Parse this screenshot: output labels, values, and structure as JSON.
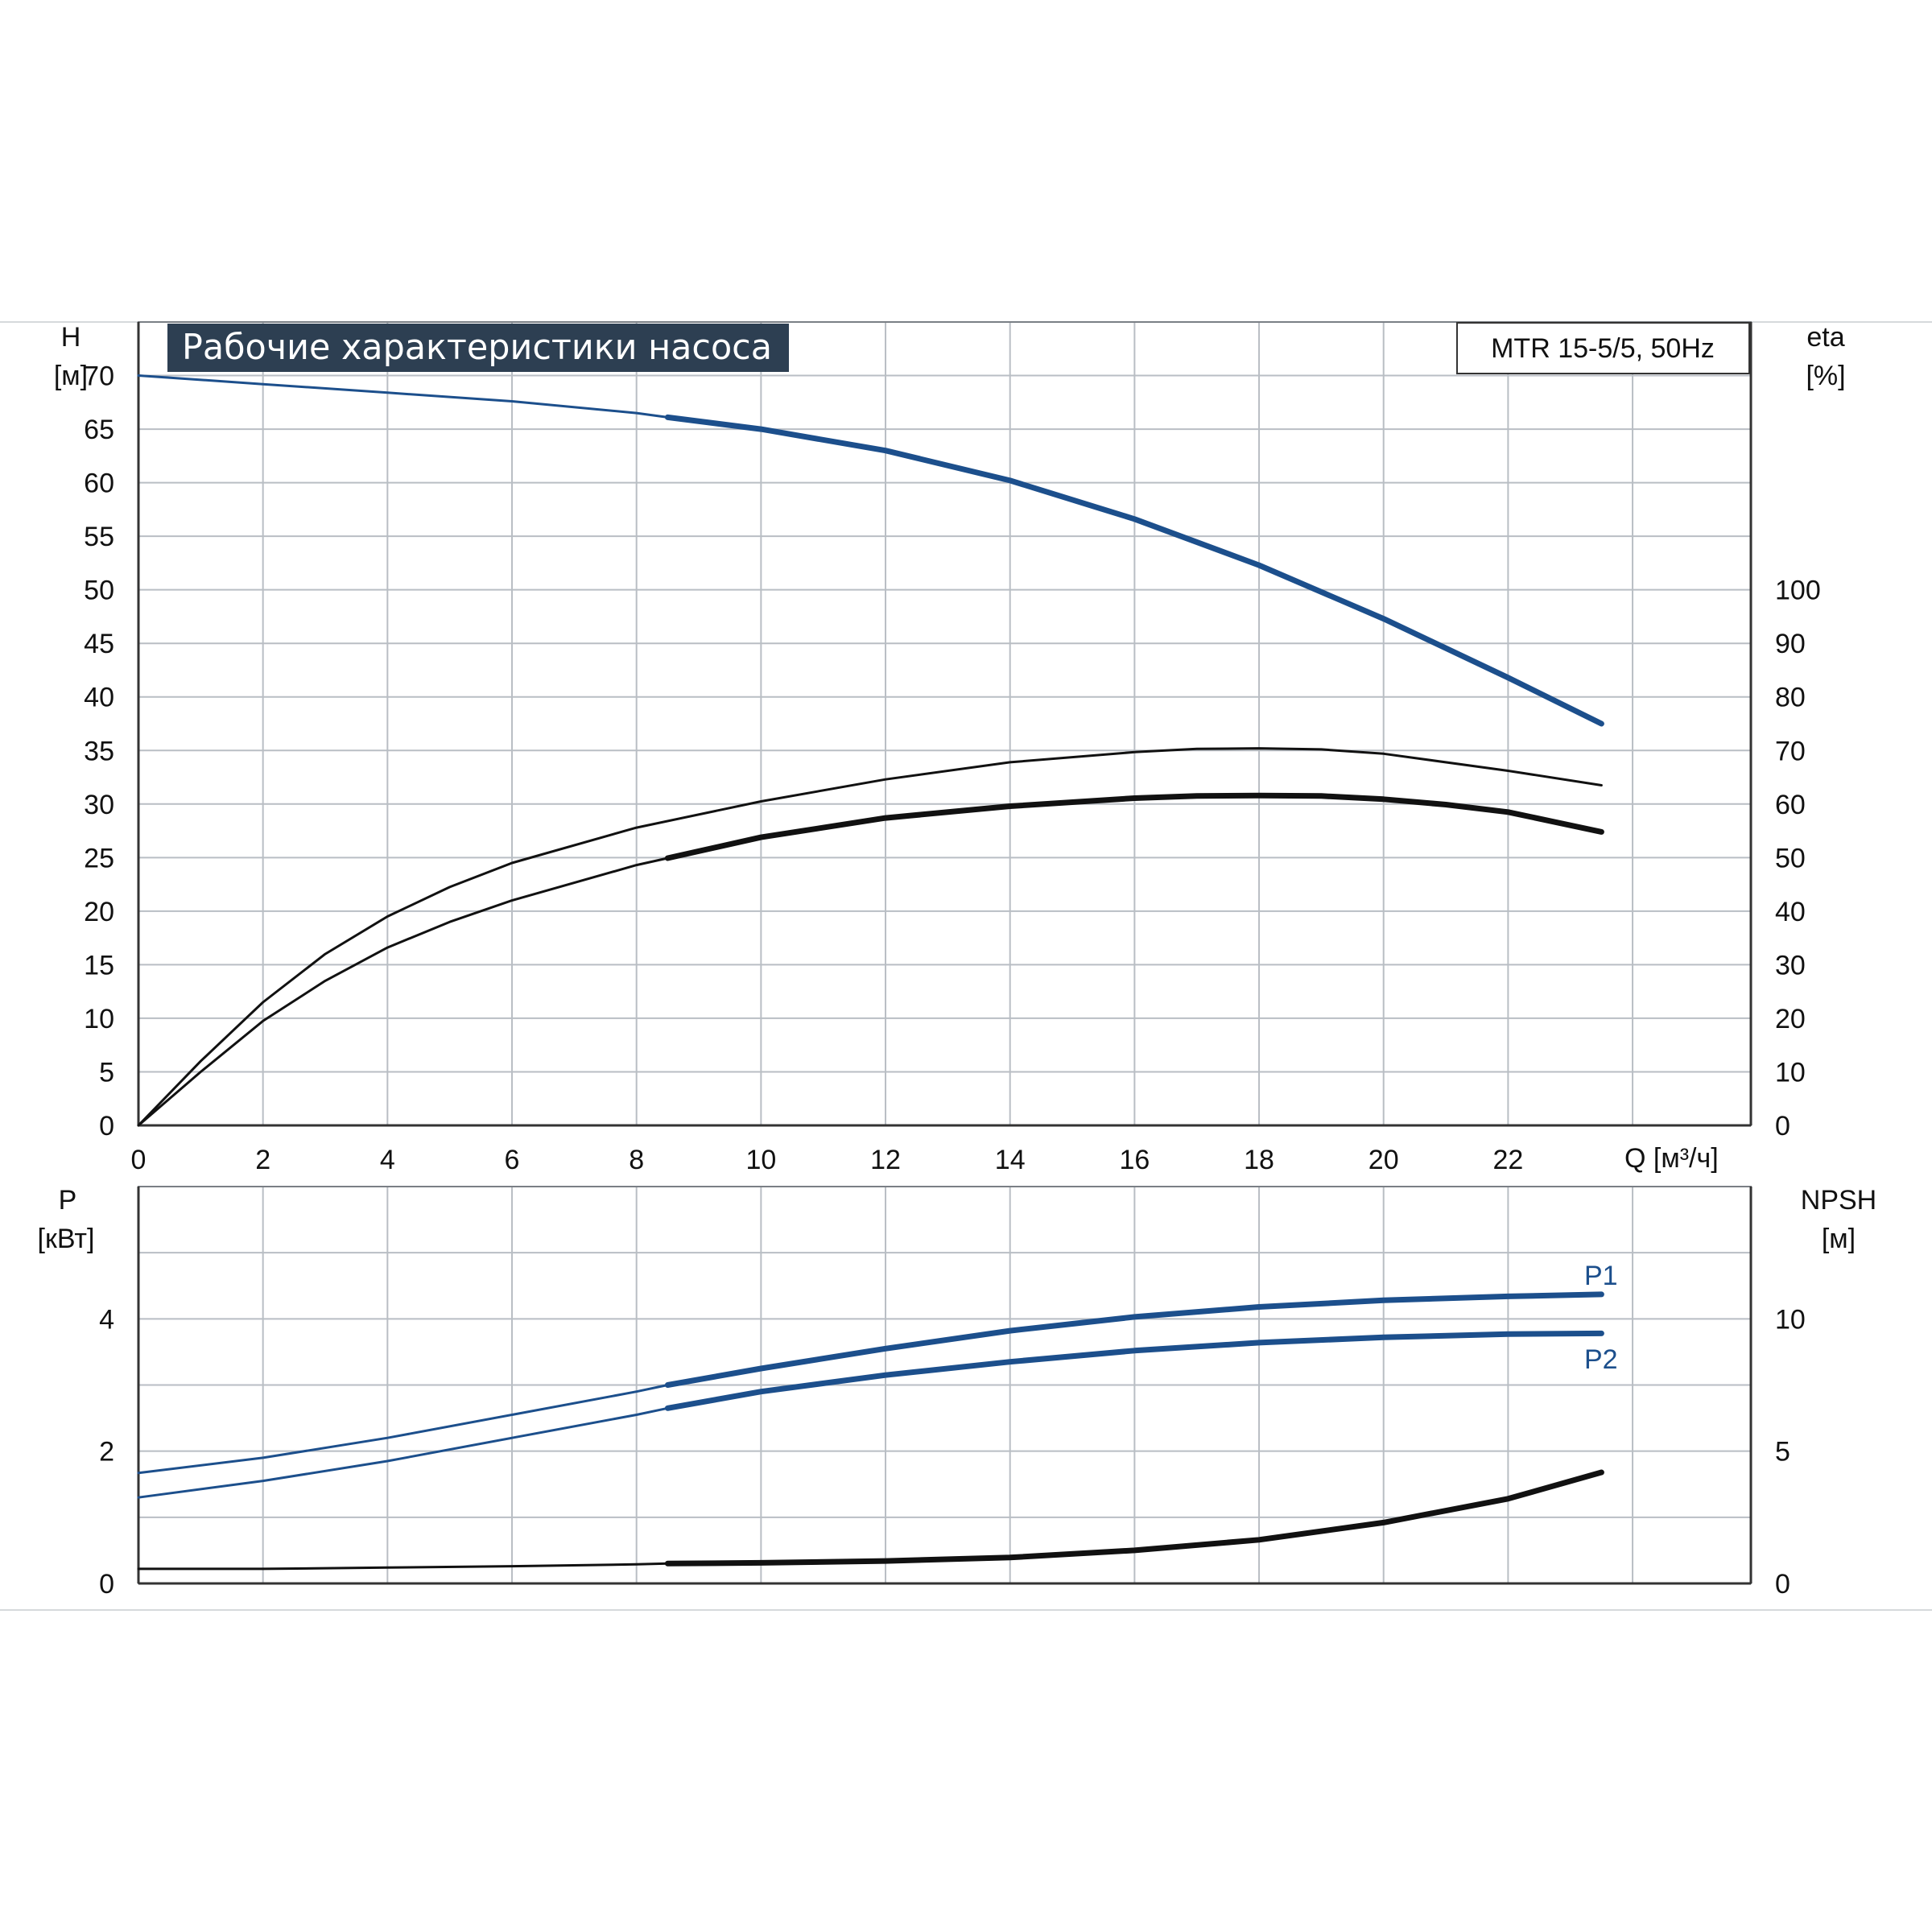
{
  "page_title": "Рабочие характеристики насоса",
  "model_label": "MTR 15-5/5, 50Hz",
  "colors": {
    "blue": "#1c4f8c",
    "black": "#111111",
    "grid": "#b9bec4",
    "title_bg": "#2d3f52"
  },
  "chart_data": [
    {
      "type": "line",
      "name": "head-efficiency",
      "x_label": "Q [м³/ч]",
      "xlim": [
        0,
        25.9
      ],
      "x_ticks": [
        "0",
        "2",
        "4",
        "6",
        "8",
        "10",
        "12",
        "14",
        "16",
        "18",
        "20",
        "22"
      ],
      "left_axis": {
        "label_top": "H",
        "label_unit": "[м]",
        "ylim": [
          0,
          75
        ],
        "ticks": [
          "0",
          "5",
          "10",
          "15",
          "20",
          "25",
          "30",
          "35",
          "40",
          "45",
          "50",
          "55",
          "60",
          "65",
          "70"
        ]
      },
      "right_axis": {
        "label_top": "eta",
        "label_unit": "[%]",
        "ylim": [
          0,
          150
        ],
        "ticks": [
          "0",
          "10",
          "20",
          "30",
          "40",
          "50",
          "60",
          "70",
          "80",
          "90",
          "100"
        ]
      },
      "grid": true,
      "series": [
        {
          "id": "H",
          "axis": "left",
          "color": "#1c4f8c",
          "operating_from": 8.5,
          "points": [
            [
              0,
              70
            ],
            [
              2,
              69.2
            ],
            [
              4,
              68.4
            ],
            [
              6,
              67.6
            ],
            [
              8,
              66.5
            ],
            [
              8.5,
              66.1
            ],
            [
              10,
              65
            ],
            [
              12,
              63
            ],
            [
              14,
              60.2
            ],
            [
              16,
              56.6
            ],
            [
              18,
              52.3
            ],
            [
              20,
              47.3
            ],
            [
              22,
              41.8
            ],
            [
              23.5,
              37.5
            ]
          ]
        },
        {
          "id": "eta-upper",
          "axis": "right",
          "color": "#111111",
          "operating_from": 99,
          "points": [
            [
              0,
              0
            ],
            [
              1,
              12
            ],
            [
              2,
              23
            ],
            [
              3,
              32
            ],
            [
              4,
              39
            ],
            [
              5,
              44.5
            ],
            [
              6,
              49
            ],
            [
              8,
              55.6
            ],
            [
              10,
              60.5
            ],
            [
              12,
              64.6
            ],
            [
              14,
              67.8
            ],
            [
              16,
              69.7
            ],
            [
              17,
              70.3
            ],
            [
              18,
              70.4
            ],
            [
              19,
              70.2
            ],
            [
              20,
              69.4
            ],
            [
              22,
              66.2
            ],
            [
              23.5,
              63.5
            ]
          ]
        },
        {
          "id": "eta-lower",
          "axis": "right",
          "color": "#111111",
          "operating_from": 8.5,
          "points": [
            [
              0,
              0
            ],
            [
              1,
              10
            ],
            [
              2,
              19.5
            ],
            [
              3,
              27
            ],
            [
              4,
              33.2
            ],
            [
              5,
              38
            ],
            [
              6,
              42
            ],
            [
              8,
              48.6
            ],
            [
              8.5,
              49.9
            ],
            [
              10,
              53.8
            ],
            [
              12,
              57.4
            ],
            [
              14,
              59.6
            ],
            [
              16,
              61.1
            ],
            [
              17,
              61.5
            ],
            [
              18,
              61.6
            ],
            [
              19,
              61.5
            ],
            [
              20,
              60.9
            ],
            [
              21,
              59.9
            ],
            [
              22,
              58.5
            ],
            [
              23.5,
              54.8
            ]
          ]
        }
      ]
    },
    {
      "type": "line",
      "name": "power-npsh",
      "xlim": [
        0,
        25.9
      ],
      "left_axis": {
        "label_top": "P",
        "label_unit": "[кВт]",
        "ylim": [
          0,
          6
        ],
        "ticks": [
          "0",
          "2",
          "4"
        ]
      },
      "right_axis": {
        "label_top": "NPSH",
        "label_unit": "[м]",
        "ylim": [
          0,
          15
        ],
        "ticks": [
          "0",
          "5",
          "10"
        ]
      },
      "grid": true,
      "series": [
        {
          "id": "P1",
          "name": "P1",
          "axis": "left",
          "color": "#1c4f8c",
          "operating_from": 8.5,
          "points": [
            [
              0,
              1.67
            ],
            [
              2,
              1.9
            ],
            [
              4,
              2.2
            ],
            [
              6,
              2.55
            ],
            [
              8,
              2.9
            ],
            [
              8.5,
              3.0
            ],
            [
              10,
              3.25
            ],
            [
              12,
              3.55
            ],
            [
              14,
              3.82
            ],
            [
              16,
              4.03
            ],
            [
              18,
              4.18
            ],
            [
              20,
              4.28
            ],
            [
              22,
              4.34
            ],
            [
              23.5,
              4.37
            ]
          ]
        },
        {
          "id": "P2",
          "name": "P2",
          "axis": "left",
          "color": "#1c4f8c",
          "operating_from": 8.5,
          "points": [
            [
              0,
              1.3
            ],
            [
              2,
              1.55
            ],
            [
              4,
              1.85
            ],
            [
              6,
              2.2
            ],
            [
              8,
              2.55
            ],
            [
              8.5,
              2.65
            ],
            [
              10,
              2.9
            ],
            [
              12,
              3.15
            ],
            [
              14,
              3.35
            ],
            [
              16,
              3.52
            ],
            [
              18,
              3.64
            ],
            [
              20,
              3.72
            ],
            [
              22,
              3.77
            ],
            [
              23.5,
              3.78
            ]
          ]
        },
        {
          "id": "NPSH",
          "axis": "right",
          "color": "#111111",
          "operating_from": 8.5,
          "points": [
            [
              0,
              0.55
            ],
            [
              2,
              0.55
            ],
            [
              4,
              0.6
            ],
            [
              6,
              0.65
            ],
            [
              8,
              0.72
            ],
            [
              8.5,
              0.75
            ],
            [
              10,
              0.78
            ],
            [
              12,
              0.85
            ],
            [
              14,
              0.98
            ],
            [
              16,
              1.25
            ],
            [
              18,
              1.65
            ],
            [
              20,
              2.3
            ],
            [
              22,
              3.2
            ],
            [
              23.5,
              4.2
            ]
          ]
        }
      ]
    }
  ]
}
